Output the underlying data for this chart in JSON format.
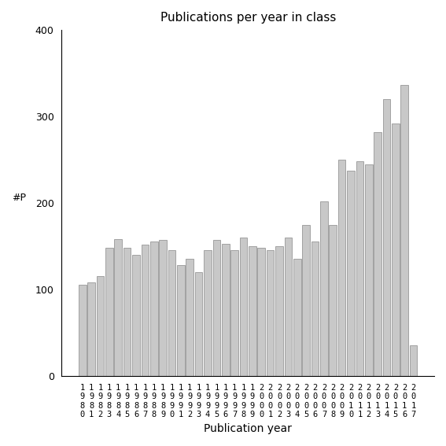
{
  "title": "Publications per year in class",
  "xlabel": "Publication year",
  "ylabel": "#P",
  "ylim": [
    0,
    400
  ],
  "yticks": [
    0,
    100,
    200,
    300,
    400
  ],
  "bar_color": "#c8c8c8",
  "bar_edge_color": "#888888",
  "years": [
    1980,
    1981,
    1982,
    1983,
    1984,
    1985,
    1986,
    1987,
    1988,
    1989,
    1990,
    1991,
    1992,
    1993,
    1994,
    1995,
    1996,
    1997,
    1998,
    1999,
    2000,
    2001,
    2002,
    2003,
    2004,
    2005,
    2006,
    2007,
    2008,
    2009,
    2010,
    2011,
    2012,
    2013,
    2014,
    2015,
    2016,
    2017
  ],
  "values": [
    105,
    108,
    115,
    148,
    158,
    148,
    140,
    152,
    155,
    157,
    145,
    128,
    135,
    120,
    145,
    157,
    153,
    145,
    160,
    150,
    148,
    145,
    150,
    160,
    135,
    175,
    155,
    202,
    175,
    250,
    237,
    248,
    245,
    282,
    320,
    292,
    336,
    35
  ],
  "background_color": "#ffffff"
}
